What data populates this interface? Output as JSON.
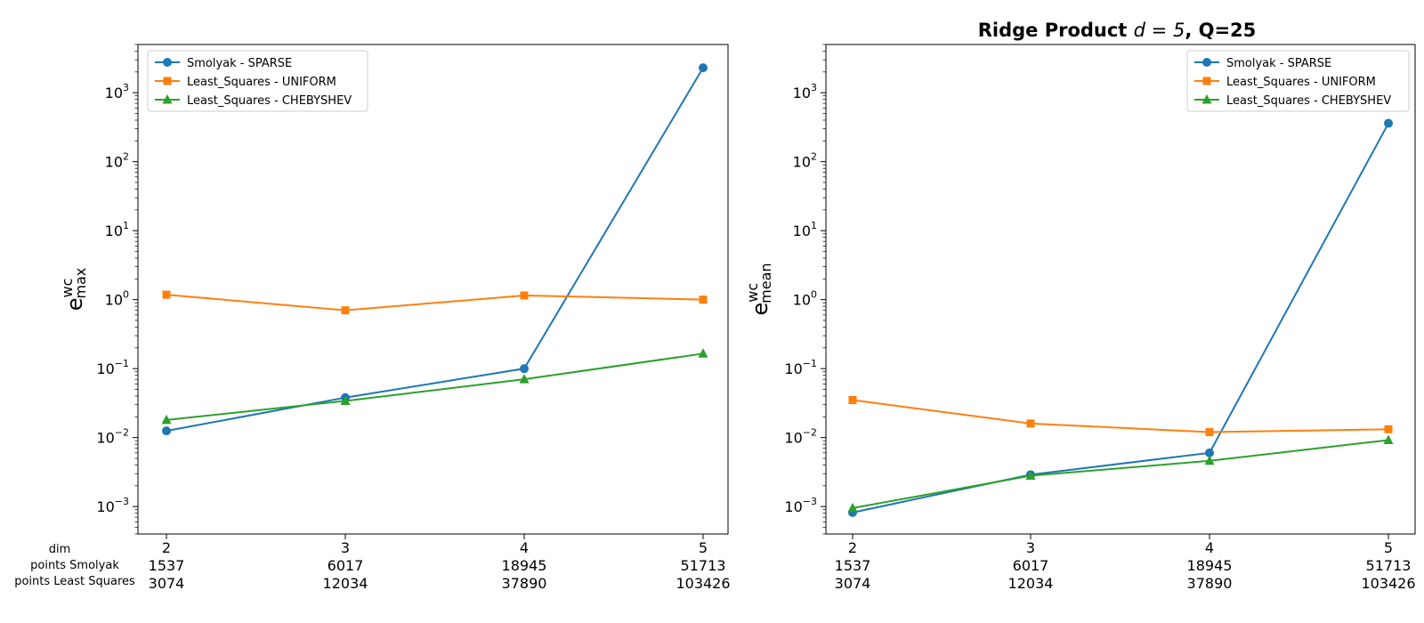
{
  "figure_title_prefix": "Ridge Product ",
  "figure_title_math": "d = 5",
  "figure_title_suffix": ", Q=25",
  "row_labels": [
    "dim",
    "points Smolyak",
    "points Least Squares"
  ],
  "chart_data": [
    {
      "type": "line",
      "yscale": "log",
      "ylim": [
        0.0004,
        5000
      ],
      "y_label_base": "e",
      "y_label_sup": "wc",
      "y_label_sub": "max",
      "legend_position": "top-left",
      "x": [
        2,
        3,
        4,
        5
      ],
      "x_rows": [
        [
          "2",
          "3",
          "4",
          "5"
        ],
        [
          "1537",
          "6017",
          "18945",
          "51713"
        ],
        [
          "3074",
          "12034",
          "37890",
          "103426"
        ]
      ],
      "y_ticks": [
        -3,
        -2,
        -1,
        0,
        1,
        2,
        3
      ],
      "series": [
        {
          "name": "Smolyak - SPARSE",
          "color": "#1f77b4",
          "marker": "circle",
          "values": [
            0.0125,
            0.038,
            0.1,
            2300
          ]
        },
        {
          "name": "Least_Squares - UNIFORM",
          "color": "#ff7f0e",
          "marker": "square",
          "values": [
            1.18,
            0.7,
            1.15,
            1.0
          ]
        },
        {
          "name": "Least_Squares - CHEBYSHEV",
          "color": "#2ca02c",
          "marker": "triangle",
          "values": [
            0.018,
            0.034,
            0.07,
            0.165
          ]
        }
      ]
    },
    {
      "type": "line",
      "yscale": "log",
      "ylim": [
        0.0004,
        5000
      ],
      "y_label_base": "e",
      "y_label_sup": "wc",
      "y_label_sub": "mean",
      "legend_position": "top-right",
      "x": [
        2,
        3,
        4,
        5
      ],
      "x_rows": [
        [
          "2",
          "3",
          "4",
          "5"
        ],
        [
          "1537",
          "6017",
          "18945",
          "51713"
        ],
        [
          "3074",
          "12034",
          "37890",
          "103426"
        ]
      ],
      "y_ticks": [
        -3,
        -2,
        -1,
        0,
        1,
        2,
        3
      ],
      "series": [
        {
          "name": "Smolyak - SPARSE",
          "color": "#1f77b4",
          "marker": "circle",
          "values": [
            0.00082,
            0.0029,
            0.006,
            360
          ]
        },
        {
          "name": "Least_Squares - UNIFORM",
          "color": "#ff7f0e",
          "marker": "square",
          "values": [
            0.035,
            0.016,
            0.012,
            0.0132
          ]
        },
        {
          "name": "Least_Squares - CHEBYSHEV",
          "color": "#2ca02c",
          "marker": "triangle",
          "values": [
            0.00095,
            0.0028,
            0.0046,
            0.0092
          ]
        }
      ]
    }
  ]
}
